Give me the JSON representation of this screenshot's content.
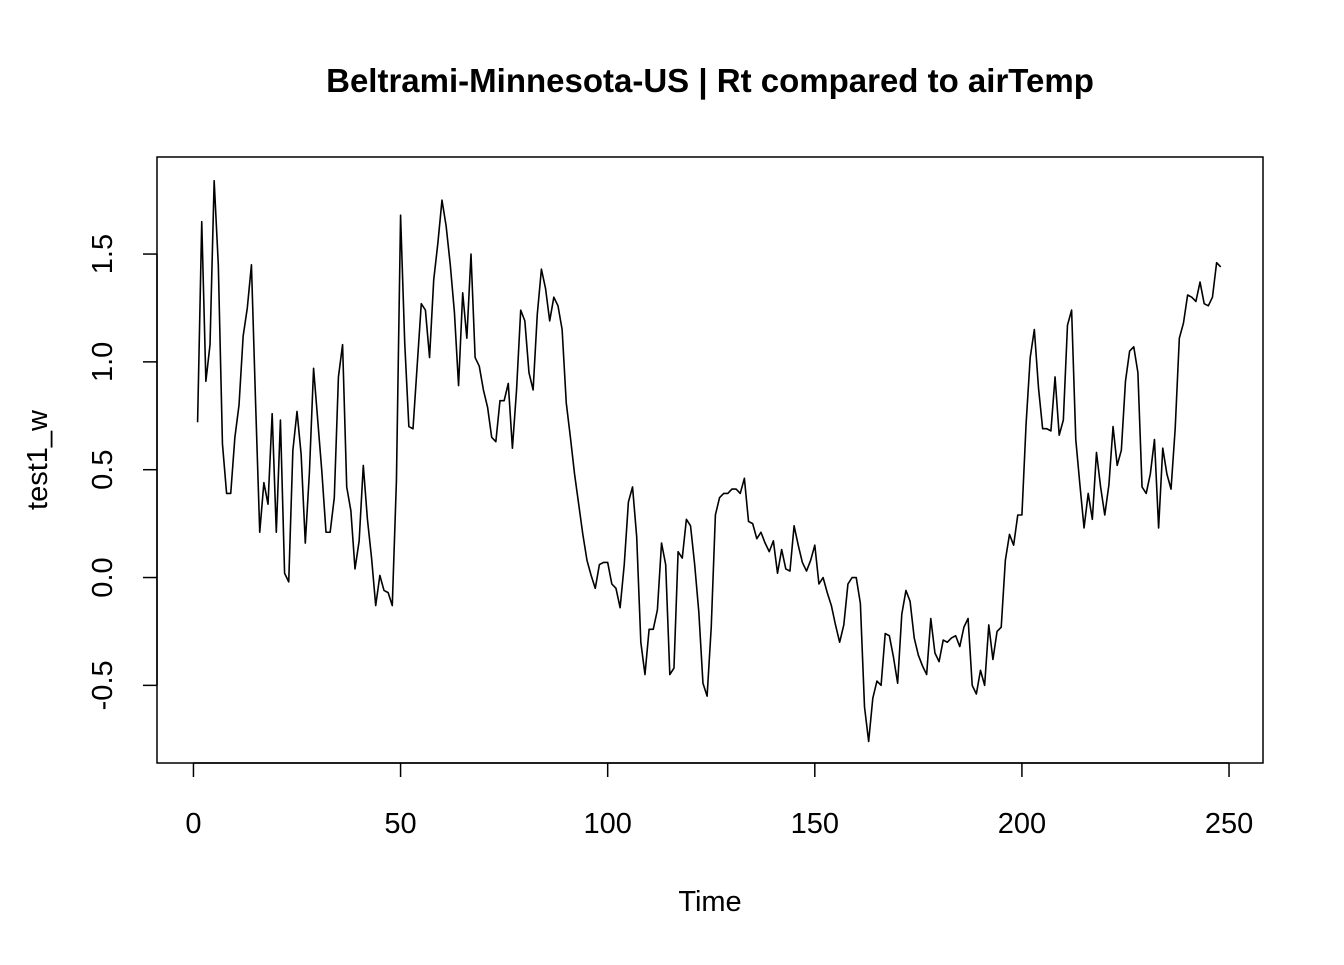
{
  "chart_data": {
    "type": "line",
    "title": "Beltrami-Minnesota-US | Rt compared to airTemp",
    "xlabel": "Time",
    "ylabel": "test1_w",
    "xlim": [
      -8.8,
      258.2
    ],
    "ylim": [
      -0.86,
      1.95
    ],
    "x_ticks": [
      0,
      50,
      100,
      150,
      200,
      250
    ],
    "x_tick_labels": [
      "0",
      "50",
      "100",
      "150",
      "200",
      "250"
    ],
    "y_ticks": [
      -0.5,
      0.0,
      0.5,
      1.0,
      1.5
    ],
    "y_tick_labels": [
      "-0.5",
      "0.0",
      "0.5",
      "1.0",
      "1.5"
    ],
    "grid": false,
    "line_color": "#000000",
    "series": [
      {
        "x_start": 1,
        "x_step": 1,
        "values": [
          0.72,
          1.65,
          0.91,
          1.08,
          1.84,
          1.45,
          0.62,
          0.39,
          0.39,
          0.65,
          0.8,
          1.12,
          1.25,
          1.45,
          0.81,
          0.21,
          0.44,
          0.34,
          0.76,
          0.21,
          0.73,
          0.02,
          -0.02,
          0.59,
          0.77,
          0.57,
          0.16,
          0.49,
          0.97,
          0.73,
          0.49,
          0.21,
          0.21,
          0.37,
          0.93,
          1.08,
          0.42,
          0.31,
          0.04,
          0.17,
          0.52,
          0.27,
          0.09,
          -0.13,
          0.01,
          -0.06,
          -0.07,
          -0.13,
          0.45,
          1.68,
          1.09,
          0.7,
          0.69,
          0.98,
          1.27,
          1.24,
          1.02,
          1.38,
          1.55,
          1.75,
          1.63,
          1.45,
          1.23,
          0.89,
          1.32,
          1.11,
          1.5,
          1.02,
          0.98,
          0.87,
          0.79,
          0.65,
          0.63,
          0.82,
          0.82,
          0.9,
          0.6,
          0.87,
          1.24,
          1.19,
          0.95,
          0.87,
          1.22,
          1.43,
          1.34,
          1.19,
          1.3,
          1.26,
          1.15,
          0.81,
          0.65,
          0.48,
          0.34,
          0.2,
          0.08,
          0.01,
          -0.05,
          0.06,
          0.07,
          0.07,
          -0.03,
          -0.05,
          -0.14,
          0.06,
          0.35,
          0.42,
          0.19,
          -0.3,
          -0.45,
          -0.24,
          -0.24,
          -0.15,
          0.16,
          0.06,
          -0.45,
          -0.42,
          0.12,
          0.09,
          0.27,
          0.24,
          0.06,
          -0.16,
          -0.49,
          -0.55,
          -0.23,
          0.29,
          0.37,
          0.39,
          0.39,
          0.41,
          0.41,
          0.39,
          0.46,
          0.26,
          0.25,
          0.18,
          0.21,
          0.16,
          0.12,
          0.17,
          0.02,
          0.13,
          0.04,
          0.03,
          0.24,
          0.15,
          0.07,
          0.03,
          0.08,
          0.15,
          -0.03,
          0.0,
          -0.07,
          -0.13,
          -0.22,
          -0.3,
          -0.22,
          -0.03,
          0.0,
          0.0,
          -0.12,
          -0.6,
          -0.76,
          -0.56,
          -0.48,
          -0.5,
          -0.26,
          -0.27,
          -0.37,
          -0.49,
          -0.17,
          -0.06,
          -0.11,
          -0.28,
          -0.36,
          -0.41,
          -0.45,
          -0.19,
          -0.35,
          -0.39,
          -0.29,
          -0.3,
          -0.28,
          -0.27,
          -0.32,
          -0.23,
          -0.19,
          -0.5,
          -0.54,
          -0.43,
          -0.5,
          -0.22,
          -0.38,
          -0.25,
          -0.23,
          0.08,
          0.2,
          0.15,
          0.29,
          0.29,
          0.71,
          1.02,
          1.15,
          0.88,
          0.69,
          0.69,
          0.68,
          0.93,
          0.66,
          0.73,
          1.17,
          1.24,
          0.64,
          0.43,
          0.23,
          0.39,
          0.27,
          0.58,
          0.42,
          0.29,
          0.43,
          0.7,
          0.52,
          0.59,
          0.91,
          1.05,
          1.07,
          0.95,
          0.42,
          0.39,
          0.48,
          0.64,
          0.23,
          0.6,
          0.48,
          0.41,
          0.69,
          1.11,
          1.18,
          1.31,
          1.3,
          1.28,
          1.37,
          1.27,
          1.26,
          1.3,
          1.46,
          1.44
        ]
      }
    ]
  }
}
